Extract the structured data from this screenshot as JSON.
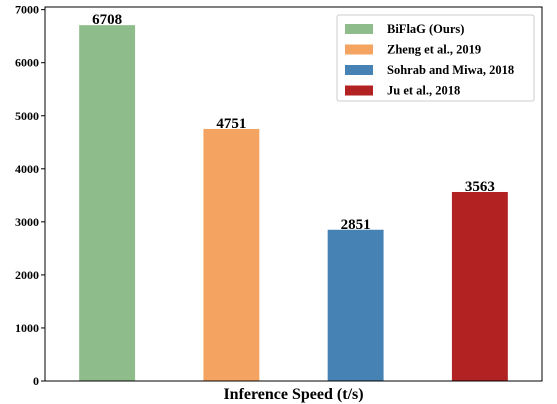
{
  "chart_data": {
    "type": "bar",
    "xlabel": "Inference Speed (t/s)",
    "ylabel": "",
    "ylim": [
      0,
      7050
    ],
    "yticks": [
      0,
      1000,
      2000,
      3000,
      4000,
      5000,
      6000,
      7000
    ],
    "grid": false,
    "legend_position": "top-right",
    "series": [
      {
        "name": "BiFlaG (Ours)",
        "value": 6708,
        "color": "#8FBC8B"
      },
      {
        "name": "Zheng et al., 2019",
        "value": 4751,
        "color": "#F4A460"
      },
      {
        "name": "Sohrab and Miwa, 2018",
        "value": 2851,
        "color": "#4682B4"
      },
      {
        "name": "Ju et al., 2018",
        "value": 3563,
        "color": "#B22222"
      }
    ]
  }
}
